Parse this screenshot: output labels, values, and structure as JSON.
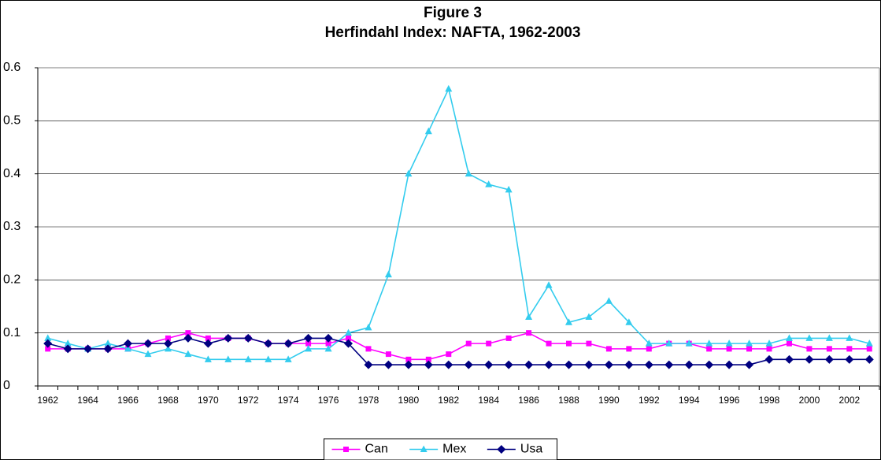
{
  "chart_data": {
    "type": "line",
    "title": "Figure 3",
    "subtitle": "Herfindahl Index: NAFTA, 1962-2003",
    "categories": [
      1962,
      null,
      1964,
      null,
      1966,
      null,
      1968,
      null,
      1970,
      null,
      1972,
      null,
      1974,
      null,
      1976,
      null,
      1978,
      null,
      1980,
      null,
      1982,
      null,
      1984,
      null,
      1986,
      null,
      1988,
      null,
      1990,
      null,
      1992,
      null,
      1994,
      null,
      1996,
      null,
      1998,
      null,
      2000,
      null,
      2002,
      null
    ],
    "series": [
      {
        "name": "Can",
        "color": "#ff00ff",
        "marker": "square",
        "values": [
          0.07,
          0.07,
          0.07,
          0.07,
          0.07,
          0.08,
          0.09,
          0.1,
          0.09,
          0.09,
          0.09,
          0.08,
          0.08,
          0.08,
          0.08,
          0.09,
          0.07,
          0.06,
          0.05,
          0.05,
          0.06,
          0.08,
          0.08,
          0.09,
          0.1,
          0.08,
          0.08,
          0.08,
          0.07,
          0.07,
          0.07,
          0.08,
          0.08,
          0.07,
          0.07,
          0.07,
          0.07,
          0.08,
          0.07,
          0.07,
          0.07,
          0.07
        ]
      },
      {
        "name": "Mex",
        "color": "#33ccee",
        "marker": "triangle",
        "values": [
          0.09,
          0.08,
          0.07,
          0.08,
          0.07,
          0.06,
          0.07,
          0.06,
          0.05,
          0.05,
          0.05,
          0.05,
          0.05,
          0.07,
          0.07,
          0.1,
          0.11,
          0.21,
          0.4,
          0.48,
          0.56,
          0.4,
          0.38,
          0.37,
          0.13,
          0.19,
          0.12,
          0.13,
          0.16,
          0.12,
          0.08,
          0.08,
          0.08,
          0.08,
          0.08,
          0.08,
          0.08,
          0.09,
          0.09,
          0.09,
          0.09,
          0.08
        ]
      },
      {
        "name": "Usa",
        "color": "#000080",
        "marker": "diamond",
        "values": [
          0.08,
          0.07,
          0.07,
          0.07,
          0.08,
          0.08,
          0.08,
          0.09,
          0.08,
          0.09,
          0.09,
          0.08,
          0.08,
          0.09,
          0.09,
          0.08,
          0.04,
          0.04,
          0.04,
          0.04,
          0.04,
          0.04,
          0.04,
          0.04,
          0.04,
          0.04,
          0.04,
          0.04,
          0.04,
          0.04,
          0.04,
          0.04,
          0.04,
          0.04,
          0.04,
          0.04,
          0.05,
          0.05,
          0.05,
          0.05,
          0.05,
          0.05
        ]
      }
    ],
    "ylim": [
      0,
      0.6
    ],
    "yticks": [
      0,
      0.1,
      0.2,
      0.3,
      0.4,
      0.5,
      0.6
    ],
    "grid": true,
    "legend": "bottom"
  }
}
